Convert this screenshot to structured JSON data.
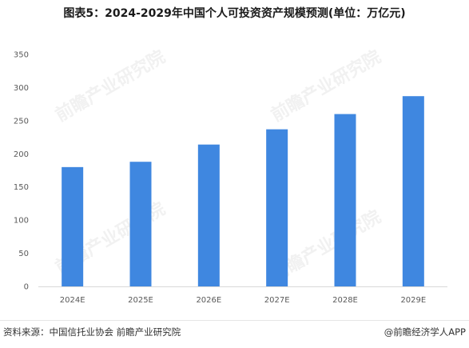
{
  "title": "图表5：2024-2029年中国个人可投资资产规模预测(单位：万亿元)",
  "footer": {
    "source": "资料来源：中国信托业协会 前瞻产业研究院",
    "credit": "@前瞻经济学人APP"
  },
  "watermark_text": "前瞻产业研究院",
  "colors": {
    "bar": "#3f87e0",
    "axis": "#d9d9d9",
    "text": "#595959"
  },
  "chart_data": {
    "type": "bar",
    "title": "图表5：2024-2029年中国个人可投资资产规模预测(单位：万亿元)",
    "xlabel": "",
    "ylabel": "",
    "categories": [
      "2024E",
      "2025E",
      "2026E",
      "2027E",
      "2028E",
      "2029E"
    ],
    "values": [
      180,
      188,
      214,
      237,
      260,
      287
    ],
    "ylim": [
      0,
      350
    ],
    "yticks": [
      0,
      50,
      100,
      150,
      200,
      250,
      300,
      350
    ],
    "grid": false,
    "legend": "none"
  }
}
